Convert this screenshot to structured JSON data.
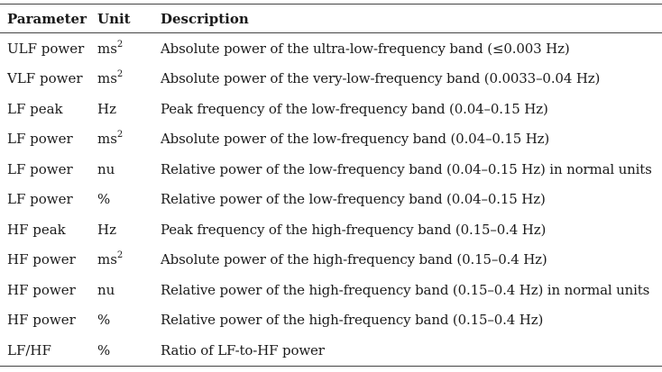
{
  "headers": {
    "parameter": "Parameter",
    "unit": "Unit",
    "description": "Description"
  },
  "rows": [
    {
      "parameter": "ULF power",
      "unit_base": "ms",
      "unit_sup": "2",
      "description": "Absolute power of the ultra-low-frequency band (≤0.003 Hz)"
    },
    {
      "parameter": "VLF power",
      "unit_base": "ms",
      "unit_sup": "2",
      "description": "Absolute power of the very-low-frequency band (0.0033–0.04 Hz)"
    },
    {
      "parameter": "LF peak",
      "unit_base": "Hz",
      "unit_sup": "",
      "description": "Peak frequency of the low-frequency band (0.04–0.15 Hz)"
    },
    {
      "parameter": "LF power",
      "unit_base": "ms",
      "unit_sup": "2",
      "description": "Absolute power of the low-frequency band (0.04–0.15 Hz)"
    },
    {
      "parameter": "LF power",
      "unit_base": "nu",
      "unit_sup": "",
      "description": "Relative power of the low-frequency band (0.04–0.15 Hz) in normal units"
    },
    {
      "parameter": "LF power",
      "unit_base": "%",
      "unit_sup": "",
      "description": "Relative power of the low-frequency band (0.04–0.15 Hz)"
    },
    {
      "parameter": "HF peak",
      "unit_base": "Hz",
      "unit_sup": "",
      "description": "Peak frequency of the high-frequency band (0.15–0.4 Hz)"
    },
    {
      "parameter": "HF power",
      "unit_base": "ms",
      "unit_sup": "2",
      "description": "Absolute power of the high-frequency band (0.15–0.4 Hz)"
    },
    {
      "parameter": "HF power",
      "unit_base": "nu",
      "unit_sup": "",
      "description": "Relative power of the high-frequency band (0.15–0.4 Hz) in normal units"
    },
    {
      "parameter": "HF power",
      "unit_base": "%",
      "unit_sup": "",
      "description": "Relative power of the high-frequency band (0.15–0.4 Hz)"
    },
    {
      "parameter": "LF/HF",
      "unit_base": "%",
      "unit_sup": "",
      "description": "Ratio of LF-to-HF power"
    }
  ]
}
